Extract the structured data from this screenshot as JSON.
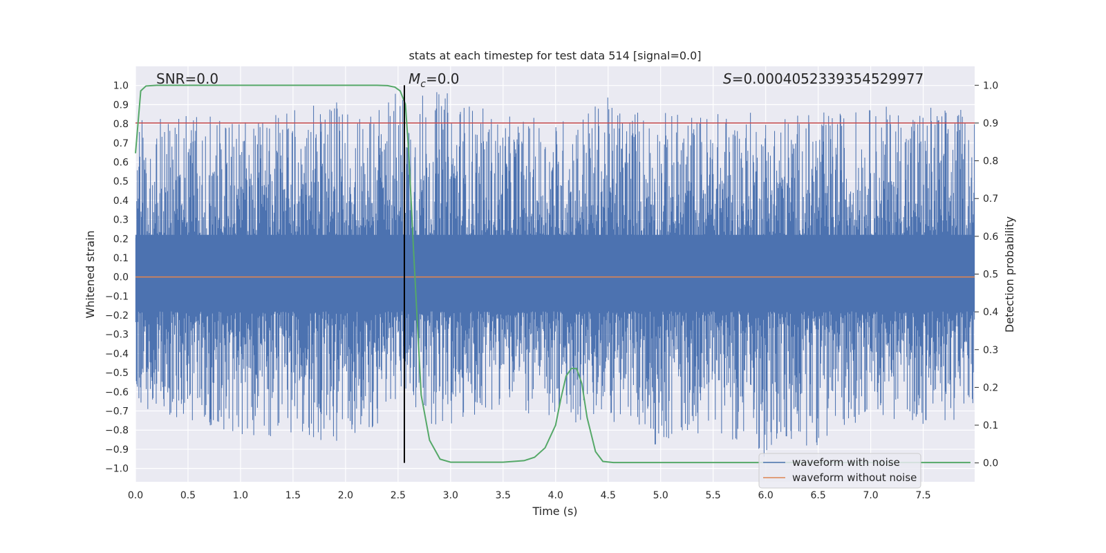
{
  "chart_data": {
    "type": "line",
    "title": "stats at each timestep for test data 514 [signal=0.0]",
    "xlabel": "Time (s)",
    "ylabel_left": "Whitened strain",
    "ylabel_right": "Detection probability",
    "xlim": [
      0.0,
      7.99
    ],
    "ylim_left": [
      -1.07,
      1.1
    ],
    "ylim_right": [
      -0.05,
      1.05
    ],
    "x_ticks": [
      0.0,
      0.5,
      1.0,
      1.5,
      2.0,
      2.5,
      3.0,
      3.5,
      4.0,
      4.5,
      5.0,
      5.5,
      6.0,
      6.5,
      7.0,
      7.5
    ],
    "x_tick_labels": [
      "0.0",
      "0.5",
      "1.0",
      "1.5",
      "2.0",
      "2.5",
      "3.0",
      "3.5",
      "4.0",
      "4.5",
      "5.0",
      "5.5",
      "6.0",
      "6.5",
      "7.0",
      "7.5"
    ],
    "y_left_ticks": [
      -1.0,
      -0.9,
      -0.8,
      -0.7,
      -0.6,
      -0.5,
      -0.4,
      -0.3,
      -0.2,
      -0.1,
      0.0,
      0.1,
      0.2,
      0.3,
      0.4,
      0.5,
      0.6,
      0.7,
      0.8,
      0.9,
      1.0
    ],
    "y_left_tick_labels": [
      "−1.0",
      "−0.9",
      "−0.8",
      "−0.7",
      "−0.6",
      "−0.5",
      "−0.4",
      "−0.3",
      "−0.2",
      "−0.1",
      "0.0",
      "0.1",
      "0.2",
      "0.3",
      "0.4",
      "0.5",
      "0.6",
      "0.7",
      "0.8",
      "0.9",
      "1.0"
    ],
    "y_right_ticks": [
      0.0,
      0.1,
      0.2,
      0.3,
      0.4,
      0.5,
      0.6,
      0.7,
      0.8,
      0.9,
      1.0
    ],
    "y_right_tick_labels": [
      "0.0",
      "0.1",
      "0.2",
      "0.3",
      "0.4",
      "0.5",
      "0.6",
      "0.7",
      "0.8",
      "0.9",
      "1.0"
    ],
    "grid": true,
    "series": [
      {
        "name": "waveform with noise",
        "axis": "left",
        "color": "#4c72b0",
        "kind": "noise",
        "envelope_pos": [
          0.86,
          0.85,
          0.84,
          0.88,
          0.92,
          0.99,
          0.97,
          0.84,
          0.83,
          0.94,
          0.87,
          0.87,
          0.87,
          0.86,
          0.89,
          0.92,
          0.87
        ],
        "envelope_neg": [
          -0.74,
          -0.76,
          -0.84,
          -0.83,
          -0.91,
          -0.68,
          -0.82,
          -0.66,
          -0.79,
          -0.75,
          -0.89,
          -0.79,
          -0.95,
          -0.88,
          -0.72,
          -0.78,
          -0.74
        ]
      },
      {
        "name": "waveform without noise",
        "axis": "left",
        "color": "#dd8452",
        "x": [
          0.0,
          7.99
        ],
        "y": [
          0.0,
          0.0
        ]
      },
      {
        "name": "detection probability",
        "axis": "right",
        "color": "#55a868",
        "x": [
          0.0,
          0.05,
          0.1,
          0.2,
          2.3,
          2.4,
          2.47,
          2.52,
          2.57,
          2.6,
          2.65,
          2.72,
          2.8,
          2.9,
          3.0,
          3.5,
          3.7,
          3.8,
          3.9,
          4.0,
          4.05,
          4.1,
          4.15,
          4.2,
          4.25,
          4.3,
          4.38,
          4.45,
          4.55,
          7.95
        ],
        "y": [
          0.82,
          0.985,
          0.998,
          1.0,
          1.0,
          0.999,
          0.995,
          0.985,
          0.95,
          0.83,
          0.55,
          0.18,
          0.06,
          0.01,
          0.002,
          0.002,
          0.006,
          0.015,
          0.04,
          0.1,
          0.17,
          0.23,
          0.25,
          0.25,
          0.21,
          0.12,
          0.03,
          0.004,
          0.001,
          0.001
        ]
      },
      {
        "name": "threshold",
        "axis": "right",
        "color": "#c44e52",
        "x": [
          0.0,
          7.99
        ],
        "y": [
          0.9,
          0.9
        ]
      }
    ],
    "vline": {
      "x": 2.56,
      "y_from": 0.0,
      "y_to": 1.0,
      "axis": "right",
      "color": "#000000"
    },
    "annotations": {
      "snr": "SNR=0.0",
      "mc_symbol": "M",
      "mc_sub": "c",
      "mc_value": "=0.0",
      "s_symbol": "S",
      "s_value": "=0.0004052339354529977"
    },
    "legend": {
      "location": "lower-right",
      "entries": [
        {
          "label": "waveform with noise",
          "color": "#4c72b0"
        },
        {
          "label": "waveform without noise",
          "color": "#dd8452"
        }
      ]
    },
    "colors": {
      "plot_background": "#eaeaf2",
      "grid": "#ffffff",
      "text": "#262626"
    }
  }
}
